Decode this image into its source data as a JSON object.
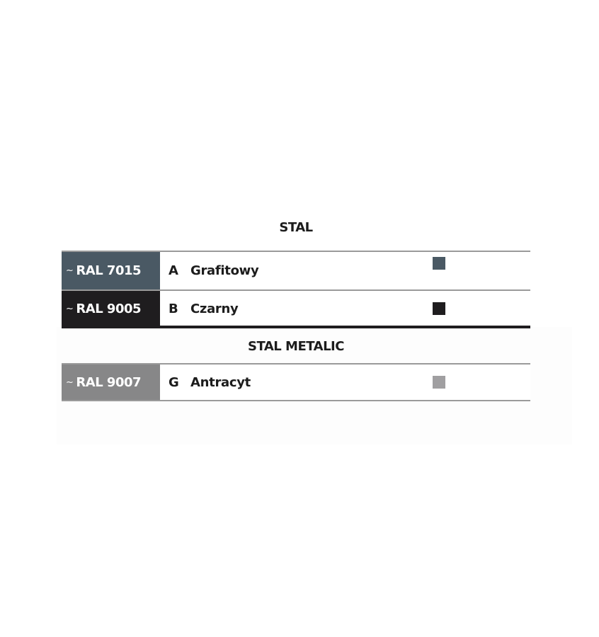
{
  "sections": [
    {
      "title": "STAL",
      "rows": [
        {
          "ral": "RAL 7015",
          "tilde": "~",
          "code": "A",
          "name": "Grafitowy",
          "label_color": "#4a5964",
          "swatch_color": "#4a5964"
        },
        {
          "ral": "RAL 9005",
          "tilde": "~",
          "code": "B",
          "name": "Czarny",
          "label_color": "#1f1d1f",
          "swatch_color": "#1f1d1f"
        }
      ]
    },
    {
      "title": "STAL METALIC",
      "rows": [
        {
          "ral": "RAL 9007",
          "tilde": "~",
          "code": "G",
          "name": "Antracyt",
          "label_color": "#878788",
          "swatch_color": "#a09fa1"
        }
      ]
    }
  ]
}
